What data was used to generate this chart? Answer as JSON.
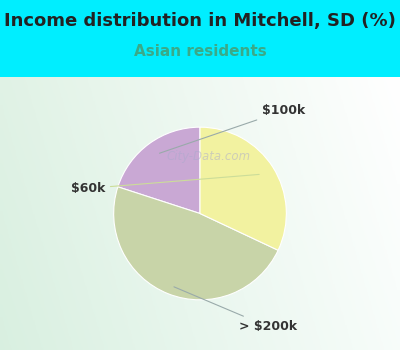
{
  "title": "Income distribution in Mitchell, SD (%)",
  "subtitle": "Asian residents",
  "slices": [
    {
      "label": "$100k",
      "value": 20,
      "color": "#c9a8d4"
    },
    {
      "label": "> $200k",
      "value": 48,
      "color": "#c8d4a8"
    },
    {
      "label": "$60k",
      "value": 32,
      "color": "#f2f2a0"
    }
  ],
  "title_fontsize": 13,
  "subtitle_fontsize": 11,
  "subtitle_color": "#3aaa88",
  "title_color": "#222222",
  "bg_color_top": "#00eeff",
  "chart_bg": "#e0efe8",
  "label_fontsize": 9,
  "startangle": 90,
  "label_color": "#333333",
  "watermark_color": "#aaaacc",
  "watermark_alpha": 0.5
}
